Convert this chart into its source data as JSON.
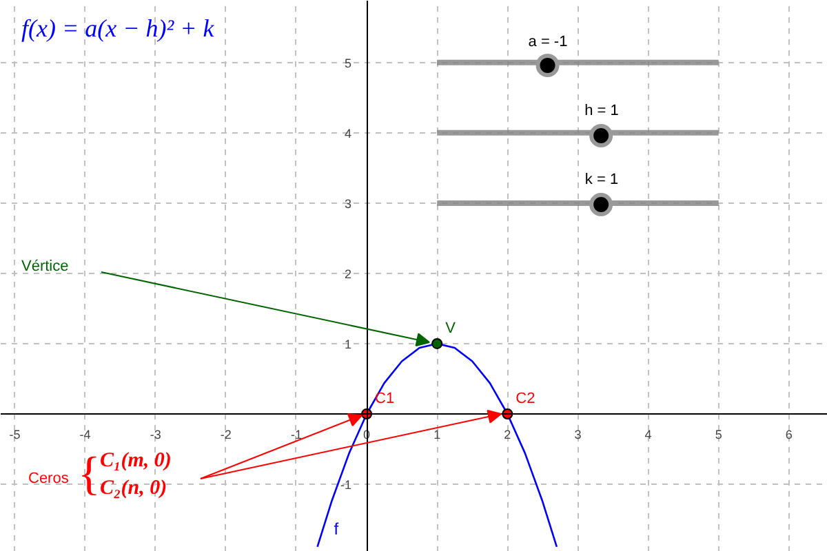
{
  "chart_data": {
    "type": "line",
    "xlim": [
      -5.2,
      6.55
    ],
    "ylim": [
      -1.96,
      5.88
    ],
    "xticks": [
      -5,
      -4,
      -3,
      -2,
      -1,
      0,
      1,
      2,
      3,
      4,
      5,
      6
    ],
    "yticks": [
      -1,
      {
        "value": 0,
        "label": null
      },
      1,
      2,
      3,
      4,
      5
    ],
    "grid": true,
    "series": [
      {
        "name": "f",
        "color": "#0000ff",
        "x": [
          -0.7,
          -0.5,
          -0.25,
          0,
          0.25,
          0.5,
          0.75,
          1,
          1.25,
          1.5,
          1.75,
          2,
          2.25,
          2.5,
          2.7
        ],
        "values": [
          -1.89,
          -1.25,
          -0.56,
          0,
          0.44,
          0.75,
          0.94,
          1,
          0.94,
          0.75,
          0.44,
          0,
          -0.56,
          -1.25,
          -1.89
        ]
      },
      {
        "color": "#808080",
        "x": [
          1,
          5
        ],
        "values": [
          5,
          5
        ]
      },
      {
        "color": "#808080",
        "x": [
          1,
          5
        ],
        "values": [
          4,
          4
        ]
      },
      {
        "color": "#808080",
        "x": [
          1,
          5
        ],
        "values": [
          3,
          3
        ]
      },
      {
        "type": "scatter",
        "color": "#000000",
        "x": [
          2.57,
          3.33,
          3.33
        ],
        "values": [
          4.96,
          3.96,
          2.98
        ]
      },
      {
        "name": "V",
        "type": "scatter",
        "color": "#006400",
        "x": [
          1
        ],
        "values": [
          1
        ]
      },
      {
        "name": "C1",
        "type": "scatter",
        "color": "#ff0000",
        "x": [
          0
        ],
        "values": [
          0
        ]
      },
      {
        "name": "C2",
        "type": "scatter",
        "color": "#ff0000",
        "x": [
          2
        ],
        "values": [
          0
        ]
      }
    ],
    "annotations": [
      "f(x) = a(x − h)² + k",
      "a = -1",
      "h = 1",
      "k = 1",
      "Vértice",
      "Ceros",
      "{",
      "C₁(m, 0)",
      "C₂(n, 0)"
    ]
  }
}
